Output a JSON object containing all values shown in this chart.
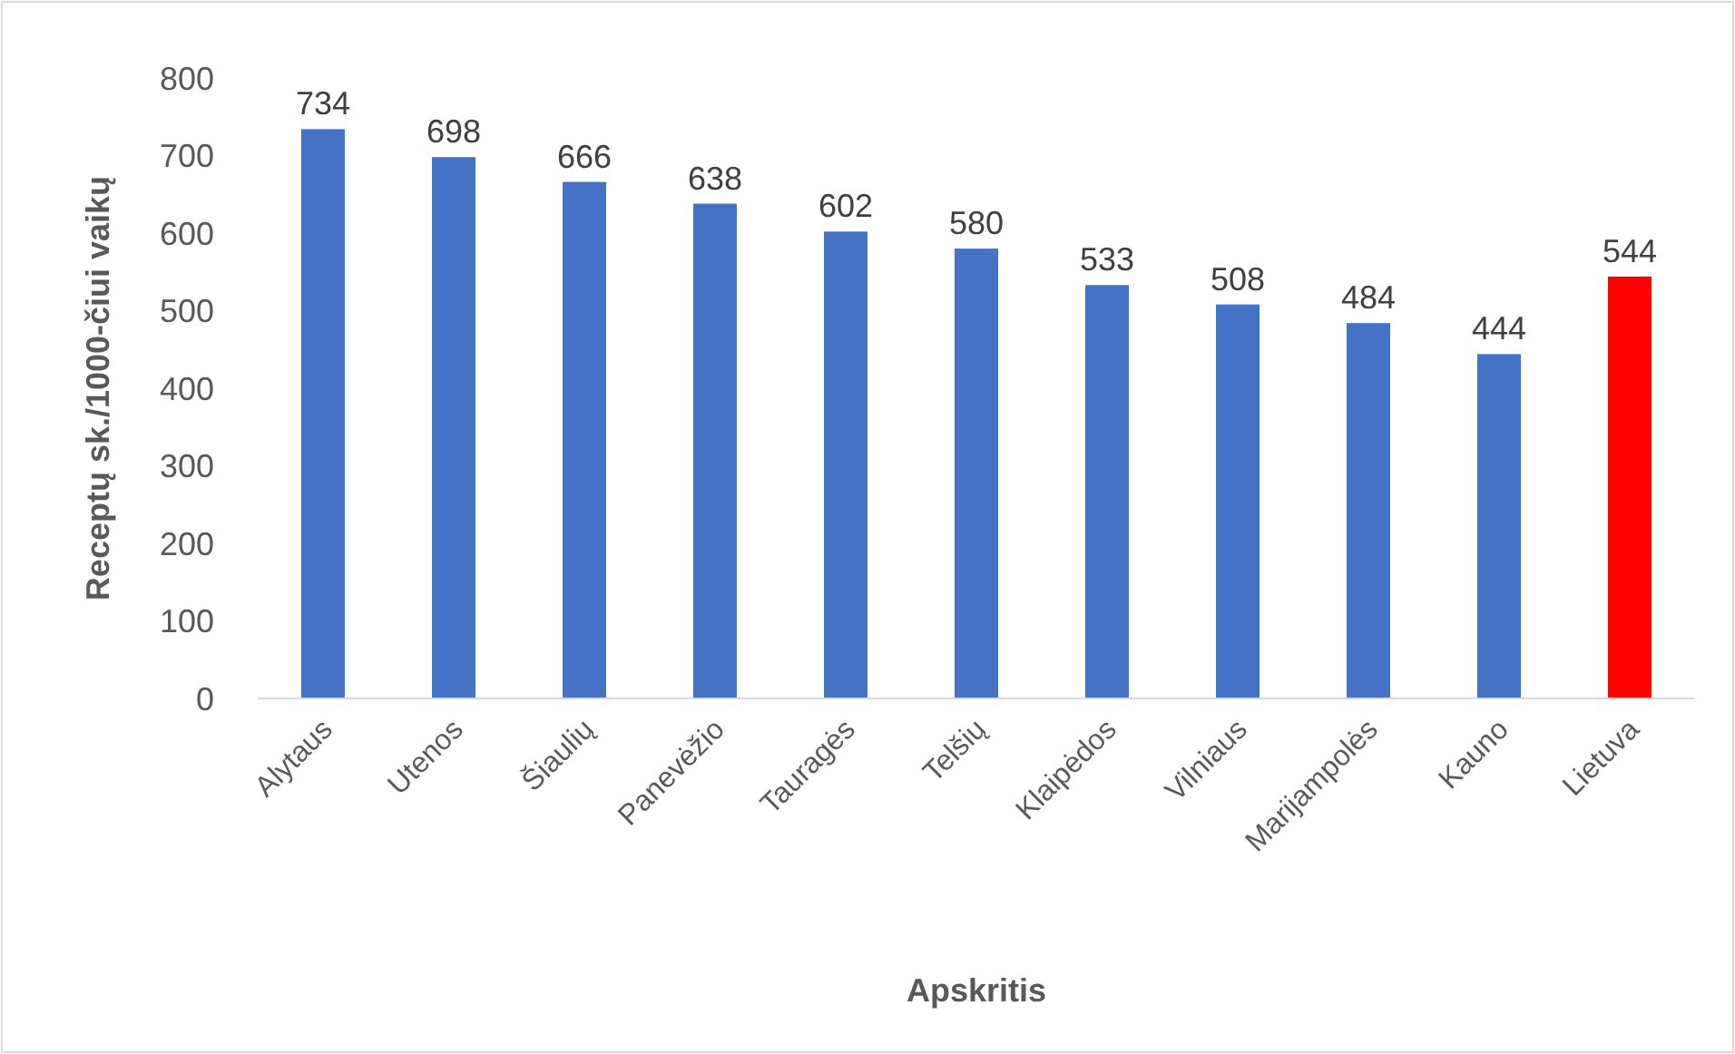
{
  "chart_data": {
    "type": "bar",
    "xlabel": "Apskritis",
    "ylabel": "Receptų sk./1000-čiui vaikų",
    "categories": [
      "Alytaus",
      "Utenos",
      "Šiaulių",
      "Panevėžio",
      "Tauragės",
      "Telšių",
      "Klaipėdos",
      "Vilniaus",
      "Marijampolės",
      "Kauno",
      "Lietuva"
    ],
    "values": [
      734,
      698,
      666,
      638,
      602,
      580,
      533,
      508,
      484,
      444,
      544
    ],
    "colors": [
      "#4472c4",
      "#4472c4",
      "#4472c4",
      "#4472c4",
      "#4472c4",
      "#4472c4",
      "#4472c4",
      "#4472c4",
      "#4472c4",
      "#4472c4",
      "#ff0000"
    ],
    "ylim": [
      0,
      800
    ],
    "yticks": [
      0,
      100,
      200,
      300,
      400,
      500,
      600,
      700,
      800
    ],
    "data_labels": true
  }
}
